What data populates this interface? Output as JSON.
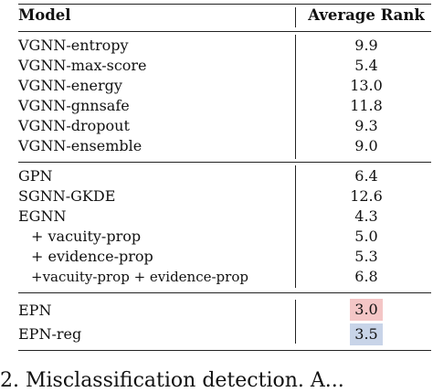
{
  "table": {
    "headers": {
      "model": "Model",
      "rank": "Average Rank"
    },
    "groups": [
      {
        "rows": [
          {
            "model": "VGNN-entropy",
            "rank": "9.9"
          },
          {
            "model": "VGNN-max-score",
            "rank": "5.4"
          },
          {
            "model": "VGNN-energy",
            "rank": "13.0"
          },
          {
            "model": "VGNN-gnnsafe",
            "rank": "11.8"
          },
          {
            "model": "VGNN-dropout",
            "rank": "9.3"
          },
          {
            "model": "VGNN-ensemble",
            "rank": "9.0"
          }
        ]
      },
      {
        "rows": [
          {
            "model": "GPN",
            "rank": "6.4"
          },
          {
            "model": "SGNN-GKDE",
            "rank": "12.6"
          },
          {
            "model": "EGNN",
            "rank": "4.3"
          },
          {
            "model": "+ vacuity-prop",
            "rank": "5.0"
          },
          {
            "model": "+ evidence-prop",
            "rank": "5.3"
          },
          {
            "model": "+vacuity-prop + evidence-prop",
            "rank": "6.8"
          }
        ]
      },
      {
        "rows": [
          {
            "model": "EPN",
            "rank": "3.0",
            "highlight": "#f4c6c6"
          },
          {
            "model": "EPN-reg",
            "rank": "3.5",
            "highlight": "#c8d4e8"
          }
        ]
      }
    ]
  },
  "caption": "2. Misclassification detection. A..."
}
